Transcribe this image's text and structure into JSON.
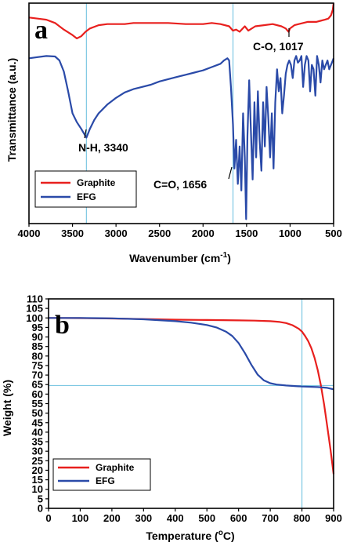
{
  "colors": {
    "graphite": "#e8201e",
    "efg": "#2a4aa8",
    "guide": "#7ec8e3"
  },
  "chart_data": [
    {
      "type": "line",
      "panel_label": "a",
      "xlabel": "Wavenumber (cm",
      "xlabel_sup": "-1",
      "xlabel_tail": ")",
      "ylabel": "Transmittance (a.u.)",
      "xlim": [
        4000,
        500
      ],
      "ylim": [
        0,
        1
      ],
      "x_reversed": true,
      "y_ticks_shown": false,
      "xticks": [
        4000,
        3500,
        3000,
        2500,
        2000,
        1500,
        1000,
        500
      ],
      "guide_lines": {
        "x": [
          3340,
          1656
        ]
      },
      "legend": {
        "position": "bottom-left",
        "entries": [
          "Graphite",
          "EFG"
        ]
      },
      "annotations": [
        {
          "text": "C-O, 1017",
          "x": 1017
        },
        {
          "text": "N-H, 3340",
          "x": 3340
        },
        {
          "text": "C=O, 1656",
          "x": 1656
        }
      ],
      "series": [
        {
          "name": "Graphite",
          "color": "#e8201e",
          "x": [
            4000,
            3900,
            3800,
            3700,
            3600,
            3500,
            3450,
            3400,
            3350,
            3300,
            3200,
            3100,
            3000,
            2900,
            2800,
            2600,
            2400,
            2200,
            2000,
            1900,
            1800,
            1700,
            1656,
            1620,
            1580,
            1520,
            1480,
            1400,
            1300,
            1200,
            1100,
            1050,
            1017,
            1000,
            950,
            900,
            850,
            800,
            750,
            700,
            650,
            600,
            560,
            530,
            510,
            500
          ],
          "y": [
            0.935,
            0.93,
            0.925,
            0.91,
            0.88,
            0.855,
            0.84,
            0.85,
            0.87,
            0.885,
            0.9,
            0.905,
            0.905,
            0.905,
            0.91,
            0.91,
            0.91,
            0.905,
            0.905,
            0.91,
            0.905,
            0.895,
            0.875,
            0.88,
            0.87,
            0.895,
            0.875,
            0.895,
            0.9,
            0.905,
            0.895,
            0.885,
            0.87,
            0.885,
            0.9,
            0.905,
            0.91,
            0.915,
            0.915,
            0.915,
            0.92,
            0.925,
            0.93,
            0.945,
            0.97,
            1.0
          ]
        },
        {
          "name": "EFG",
          "color": "#2a4aa8",
          "x": [
            4000,
            3900,
            3800,
            3700,
            3650,
            3600,
            3550,
            3500,
            3450,
            3400,
            3370,
            3340,
            3300,
            3250,
            3200,
            3100,
            3000,
            2900,
            2800,
            2700,
            2600,
            2500,
            2400,
            2300,
            2200,
            2100,
            2000,
            1900,
            1800,
            1760,
            1720,
            1700,
            1680,
            1656,
            1640,
            1620,
            1600,
            1580,
            1560,
            1540,
            1520,
            1505,
            1490,
            1470,
            1450,
            1430,
            1410,
            1390,
            1370,
            1350,
            1330,
            1310,
            1290,
            1270,
            1250,
            1230,
            1210,
            1190,
            1170,
            1150,
            1130,
            1110,
            1090,
            1070,
            1050,
            1030,
            1010,
            990,
            970,
            950,
            930,
            910,
            890,
            870,
            850,
            830,
            810,
            790,
            770,
            750,
            730,
            710,
            690,
            670,
            650,
            630,
            610,
            590,
            570,
            550,
            530,
            510,
            500
          ],
          "y": [
            0.75,
            0.755,
            0.76,
            0.758,
            0.74,
            0.69,
            0.6,
            0.5,
            0.46,
            0.43,
            0.41,
            0.39,
            0.43,
            0.47,
            0.5,
            0.54,
            0.57,
            0.595,
            0.61,
            0.62,
            0.63,
            0.645,
            0.655,
            0.665,
            0.675,
            0.685,
            0.695,
            0.71,
            0.725,
            0.74,
            0.75,
            0.74,
            0.62,
            0.45,
            0.25,
            0.38,
            0.18,
            0.35,
            0.15,
            0.5,
            0.3,
            0.02,
            0.4,
            0.65,
            0.42,
            0.2,
            0.55,
            0.3,
            0.6,
            0.38,
            0.24,
            0.55,
            0.35,
            0.62,
            0.48,
            0.3,
            0.5,
            0.25,
            0.55,
            0.7,
            0.6,
            0.66,
            0.5,
            0.58,
            0.68,
            0.72,
            0.74,
            0.72,
            0.66,
            0.74,
            0.76,
            0.73,
            0.74,
            0.76,
            0.62,
            0.72,
            0.76,
            0.74,
            0.6,
            0.72,
            0.7,
            0.58,
            0.76,
            0.72,
            0.64,
            0.74,
            0.7,
            0.72,
            0.74,
            0.7,
            0.72,
            0.74,
            0.75
          ]
        }
      ]
    },
    {
      "type": "line",
      "panel_label": "b",
      "xlabel": "Temperature (",
      "xlabel_sup": "o",
      "xlabel_tail": "C)",
      "ylabel": "Weight (%)",
      "xlim": [
        0,
        900
      ],
      "ylim": [
        0,
        110
      ],
      "xticks": [
        0,
        100,
        200,
        300,
        400,
        500,
        600,
        700,
        800,
        900
      ],
      "yticks": [
        0,
        5,
        10,
        15,
        20,
        25,
        30,
        35,
        40,
        45,
        50,
        55,
        60,
        65,
        70,
        75,
        80,
        85,
        90,
        95,
        100,
        105,
        110
      ],
      "guide_lines": {
        "x": [
          800
        ],
        "y": [
          64.5
        ]
      },
      "legend": {
        "position": "bottom-left",
        "entries": [
          "Graphite",
          "EFG"
        ]
      },
      "series": [
        {
          "name": "Graphite",
          "color": "#e8201e",
          "x": [
            0,
            100,
            200,
            300,
            400,
            500,
            600,
            650,
            700,
            730,
            750,
            770,
            790,
            800,
            810,
            820,
            830,
            840,
            850,
            860,
            870,
            880,
            890,
            900
          ],
          "y": [
            100,
            99.9,
            99.7,
            99.4,
            99.1,
            98.9,
            98.7,
            98.6,
            98.3,
            97.9,
            97.3,
            96.2,
            94.3,
            92.8,
            90.5,
            87.8,
            84,
            79,
            72.5,
            64.5,
            54.5,
            43,
            31,
            18
          ]
        },
        {
          "name": "EFG",
          "color": "#2a4aa8",
          "x": [
            0,
            100,
            200,
            300,
            400,
            450,
            500,
            530,
            560,
            580,
            600,
            620,
            640,
            660,
            680,
            700,
            720,
            750,
            800,
            850,
            880,
            900
          ],
          "y": [
            100,
            100,
            99.8,
            99.3,
            98.3,
            97.5,
            96.3,
            95,
            92.8,
            90.5,
            86.8,
            81.5,
            75.5,
            70.3,
            67.2,
            65.7,
            65,
            64.5,
            64,
            63.7,
            63.3,
            62.5
          ]
        }
      ]
    }
  ]
}
